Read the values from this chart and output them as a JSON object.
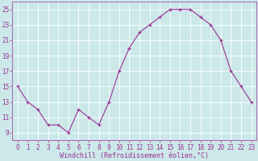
{
  "x": [
    0,
    1,
    2,
    3,
    4,
    5,
    6,
    7,
    8,
    9,
    10,
    11,
    12,
    13,
    14,
    15,
    16,
    17,
    18,
    19,
    20,
    21,
    22,
    23
  ],
  "y": [
    15,
    13,
    12,
    10,
    10,
    9,
    12,
    11,
    10,
    13,
    17,
    20,
    22,
    23,
    24,
    25,
    25,
    25,
    24,
    23,
    21,
    17,
    15,
    13
  ],
  "line_color": "#993399",
  "marker": "+",
  "bg_color": "#cce8e8",
  "grid_color": "#ffffff",
  "xlabel": "Windchill (Refroidissement éolien,°C)",
  "xlabel_color": "#993399",
  "tick_color": "#993399",
  "spine_color": "#993399",
  "ylim": [
    8.0,
    26.0
  ],
  "xlim": [
    -0.5,
    23.5
  ],
  "yticks": [
    9,
    11,
    13,
    15,
    17,
    19,
    21,
    23,
    25
  ],
  "xticks": [
    0,
    1,
    2,
    3,
    4,
    5,
    6,
    7,
    8,
    9,
    10,
    11,
    12,
    13,
    14,
    15,
    16,
    17,
    18,
    19,
    20,
    21,
    22,
    23
  ],
  "tick_fontsize": 5.5,
  "xlabel_fontsize": 6.0,
  "linewidth": 0.8,
  "markersize": 3.5,
  "markeredgewidth": 0.8
}
